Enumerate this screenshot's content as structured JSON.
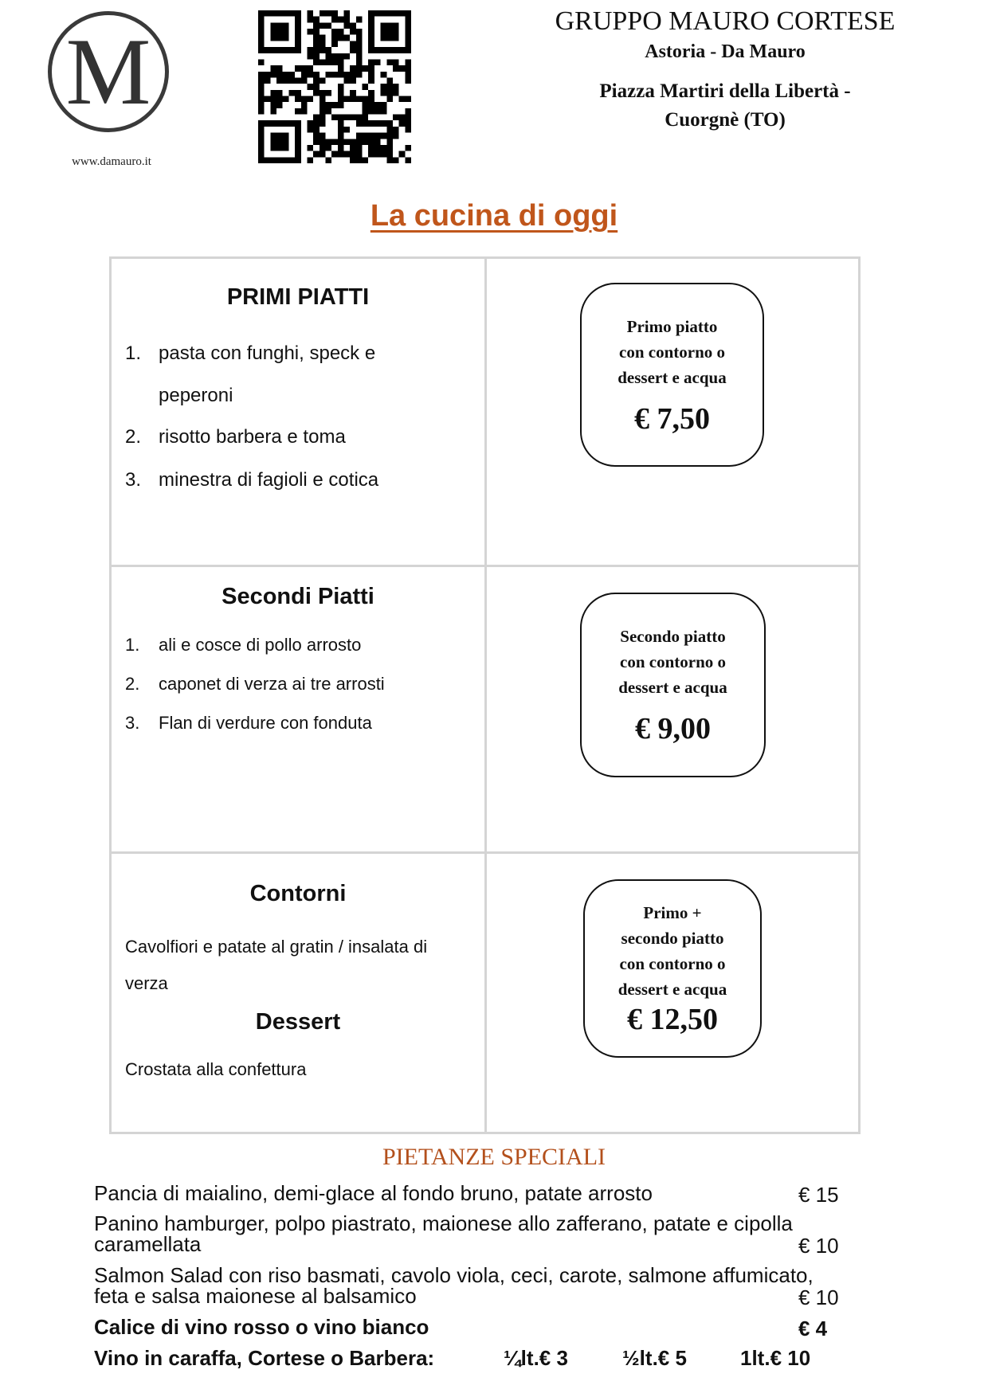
{
  "header": {
    "logo_letter": "M",
    "website": "www.damauro.it",
    "group": "GRUPPO MAURO CORTESE",
    "subtitle": "Astoria - Da Mauro",
    "address_line1": "Piazza Martiri della Libertà -",
    "address_line2": "Cuorgnè (TO)"
  },
  "title": "La cucina di oggi",
  "menu": {
    "primi": {
      "heading": "PRIMI PIATTI",
      "items": [
        {
          "n": "1.",
          "line1": "pasta con funghi, speck e",
          "line2": "peperoni"
        },
        {
          "n": "2.",
          "line1": "risotto barbera e toma"
        },
        {
          "n": "3.",
          "line1": "minestra di fagioli e cotica"
        }
      ],
      "offer": {
        "text": [
          "Primo piatto",
          "con contorno o",
          "dessert e acqua"
        ],
        "price": "€ 7,50"
      }
    },
    "secondi": {
      "heading": "Secondi Piatti",
      "items": [
        {
          "n": "1.",
          "line1": "ali e cosce di pollo arrosto"
        },
        {
          "n": "2.",
          "line1": "caponet di verza ai tre arrosti"
        },
        {
          "n": "3.",
          "line1": "Flan di verdure con fonduta"
        }
      ],
      "offer": {
        "text": [
          "Secondo piatto",
          "con contorno o",
          "dessert e acqua"
        ],
        "price": "€ 9,00"
      }
    },
    "contorni": {
      "heading": "Contorni",
      "line1": "Cavolfiori e patate al gratin / insalata di",
      "line2": "verza",
      "dessert_heading": "Dessert",
      "dessert": "Crostata alla confettura",
      "offer": {
        "text": [
          "Primo +",
          "secondo piatto",
          "con contorno o",
          "dessert e acqua"
        ],
        "price": "€ 12,50"
      }
    }
  },
  "specials": {
    "heading": "PIETANZE SPECIALI",
    "items": [
      {
        "line1": "Pancia di maialino, demi-glace al fondo bruno, patate arrosto",
        "price": "€ 15"
      },
      {
        "line1": "Panino hamburger, polpo piastrato, maionese allo zafferano, patate e cipolla",
        "line2": "caramellata",
        "price": "€ 10"
      },
      {
        "line1": "Salmon Salad con riso basmati, cavolo viola, ceci, carote, salmone affumicato,",
        "line2": "feta e salsa maionese al balsamico",
        "price": "€ 10"
      }
    ],
    "wine_glass": {
      "label": "Calice di vino rosso o vino bianco",
      "price": "€ 4"
    },
    "wine_carafe": {
      "label": "Vino in caraffa, Cortese o Barbera:",
      "quarter": "¼lt.€ 3",
      "half": "½lt.€ 5",
      "liter": "1lt.€ 10"
    }
  },
  "colors": {
    "title": "#c0561b",
    "specials_heading": "#b3501c",
    "grid": "#d4d4d4"
  }
}
